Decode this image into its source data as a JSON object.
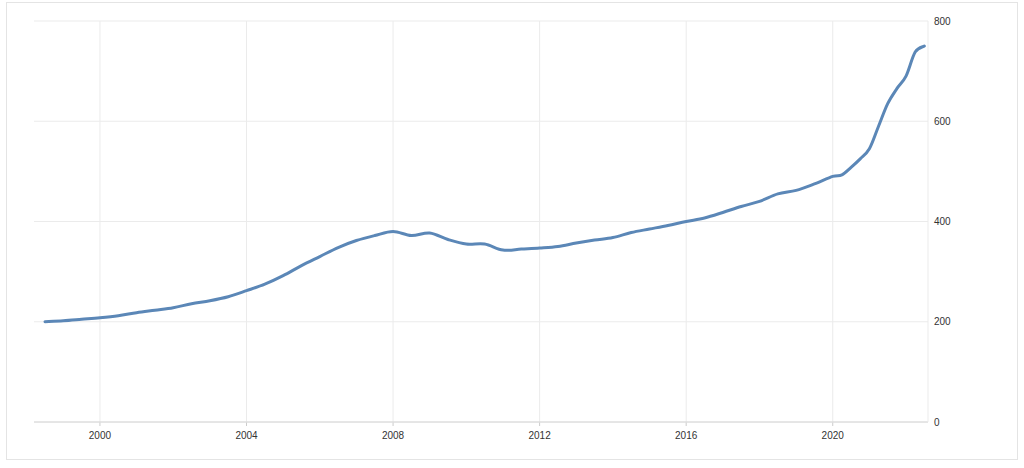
{
  "chart_data": {
    "type": "line",
    "x": [
      1998.5,
      1999.0,
      1999.5,
      2000.0,
      2000.5,
      2001.0,
      2001.5,
      2002.0,
      2002.5,
      2003.0,
      2003.5,
      2004.0,
      2004.5,
      2005.0,
      2005.5,
      2006.0,
      2006.5,
      2007.0,
      2007.5,
      2008.0,
      2008.5,
      2009.0,
      2009.5,
      2010.0,
      2010.5,
      2011.0,
      2011.5,
      2012.0,
      2012.5,
      2013.0,
      2013.5,
      2014.0,
      2014.5,
      2015.0,
      2015.5,
      2016.0,
      2016.5,
      2017.0,
      2017.5,
      2018.0,
      2018.5,
      2019.0,
      2019.5,
      2020.0,
      2020.25,
      2020.5,
      2020.75,
      2021.0,
      2021.25,
      2021.5,
      2021.75,
      2022.0,
      2022.25,
      2022.5
    ],
    "values": [
      200,
      202,
      205,
      208,
      212,
      218,
      223,
      228,
      236,
      242,
      250,
      262,
      275,
      292,
      312,
      330,
      348,
      362,
      372,
      380,
      372,
      377,
      364,
      355,
      355,
      343,
      345,
      347,
      350,
      357,
      363,
      368,
      378,
      385,
      392,
      400,
      407,
      418,
      430,
      440,
      455,
      462,
      475,
      490,
      493,
      508,
      525,
      545,
      590,
      635,
      665,
      690,
      738,
      750
    ],
    "color": "#5b87b7",
    "xlim": [
      1998.2,
      2022.6
    ],
    "xticks": [
      2000,
      2004,
      2008,
      2012,
      2016,
      2020
    ],
    "ylim": [
      0,
      800
    ],
    "yticks": [
      0,
      200,
      400,
      600,
      800
    ],
    "grid": true
  }
}
